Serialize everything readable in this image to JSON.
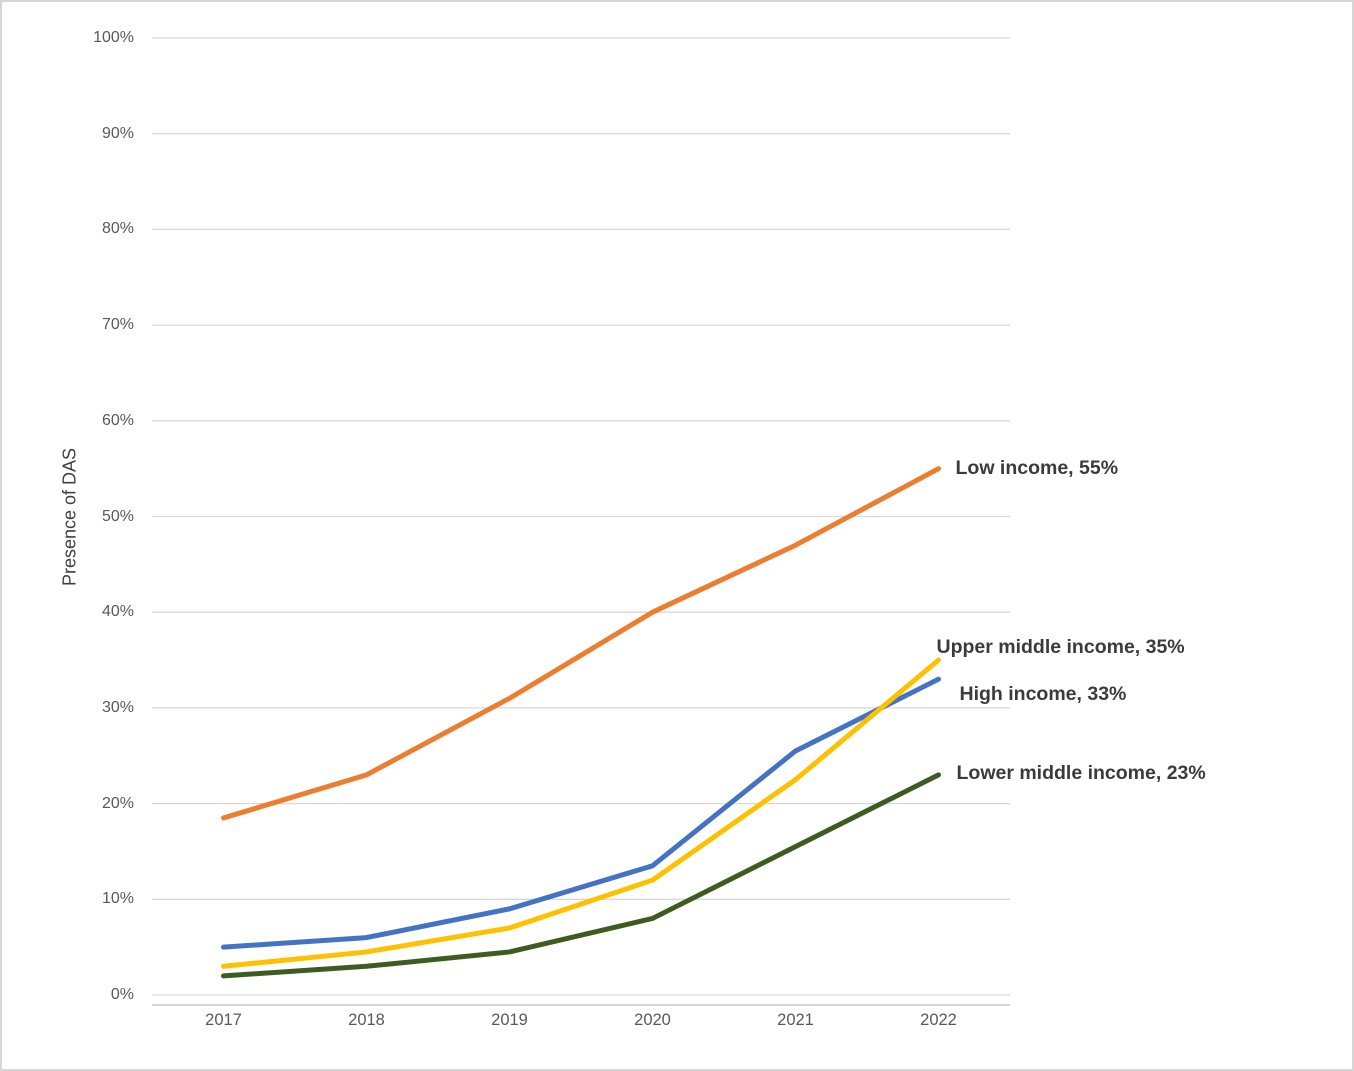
{
  "chart_data": {
    "type": "line",
    "title": "",
    "ylabel": "Presence of DAS",
    "xlabel": "",
    "x": [
      "2017",
      "2018",
      "2019",
      "2020",
      "2021",
      "2022"
    ],
    "ylim": [
      0,
      100
    ],
    "ytick_step": 10,
    "yticks": [
      {
        "value": 100,
        "label": "100%"
      },
      {
        "value": 90,
        "label": "90%"
      },
      {
        "value": 80,
        "label": "80%"
      },
      {
        "value": 70,
        "label": "70%"
      },
      {
        "value": 60,
        "label": "60%"
      },
      {
        "value": 50,
        "label": "50%"
      },
      {
        "value": 40,
        "label": "40%"
      },
      {
        "value": 30,
        "label": "30%"
      },
      {
        "value": 20,
        "label": "20%"
      },
      {
        "value": 10,
        "label": "10%"
      },
      {
        "value": 0,
        "label": "0%"
      }
    ],
    "grid": true,
    "gridline_color": "#d9d9d9",
    "axis_line_color": "#c9c9c9",
    "legend_position": "end-of-line-labels",
    "series": [
      {
        "name": "Low income",
        "values": [
          18.5,
          23,
          31,
          40,
          47,
          55
        ],
        "color": "#ED7D31",
        "end_label": "Low income, 55%"
      },
      {
        "name": "High income",
        "values": [
          5,
          6,
          9,
          13.5,
          25.5,
          33
        ],
        "color": "#4472C4",
        "end_label": "High income, 33%"
      },
      {
        "name": "Lower middle income",
        "values": [
          2,
          3,
          4.5,
          8,
          15.5,
          23
        ],
        "color": "#3E5C21",
        "end_label": "Lower middle income, 23%"
      },
      {
        "name": "Upper middle income",
        "values": [
          3,
          4.5,
          7,
          12,
          22.5,
          35
        ],
        "color": "#FFC000",
        "end_label": "Upper middle income, 35%"
      }
    ],
    "label_text_color": "#3b3b3b",
    "tick_text_color": "#595959"
  }
}
